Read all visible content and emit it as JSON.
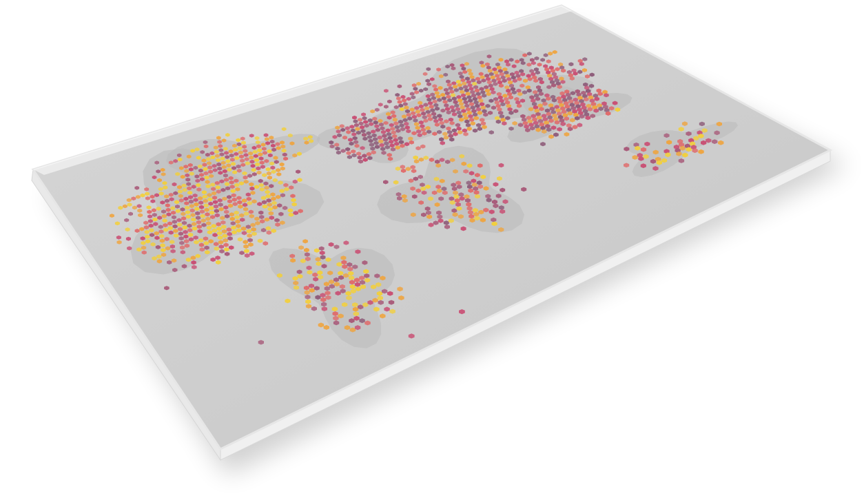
{
  "map": {
    "basemap": "world-continents",
    "projection": "tilted-3d-slab",
    "marker_shape": "hexagon",
    "colors": {
      "page_background": "#ffffff",
      "slab_top": "#cfcfcf",
      "slab_edge": "#e8e8e8",
      "land": "#bdbdbd",
      "hex_palette": [
        "#f2cf3c",
        "#efa43e",
        "#e06a6a",
        "#c94d72",
        "#a85a79",
        "#8d5a78"
      ]
    },
    "regions": [
      {
        "name": "north-america",
        "weight": 1.0,
        "level": 0.35
      },
      {
        "name": "europe",
        "weight": 1.0,
        "level": 0.7
      },
      {
        "name": "asia",
        "weight": 1.0,
        "level": 0.6
      },
      {
        "name": "south-america",
        "weight": 0.6,
        "level": 0.4
      },
      {
        "name": "africa",
        "weight": 0.5,
        "level": 0.45
      },
      {
        "name": "oceania",
        "weight": 0.5,
        "level": 0.4
      }
    ]
  }
}
